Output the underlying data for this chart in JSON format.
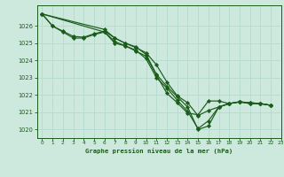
{
  "background_color": "#cde8dc",
  "grid_color": "#b8ddd0",
  "line_color": "#1a5c1a",
  "marker_color": "#1a5c1a",
  "title": "Graphe pression niveau de la mer (hPa)",
  "ylim": [
    1019.5,
    1027.2
  ],
  "xlim": [
    -0.5,
    23.0
  ],
  "yticks": [
    1020,
    1021,
    1022,
    1023,
    1024,
    1025,
    1026
  ],
  "xticks": [
    0,
    1,
    2,
    3,
    4,
    5,
    6,
    7,
    8,
    9,
    10,
    11,
    12,
    13,
    14,
    15,
    16,
    17,
    18,
    19,
    20,
    21,
    22,
    23
  ],
  "series": [
    {
      "x": [
        0,
        1,
        2,
        3,
        4,
        5,
        6,
        7,
        8,
        9,
        10,
        11,
        12,
        13,
        14,
        15,
        16,
        17,
        18,
        19,
        20,
        21,
        22
      ],
      "y": [
        1026.7,
        1026.0,
        1025.7,
        1025.4,
        1025.35,
        1025.55,
        1025.7,
        1025.3,
        1025.0,
        1024.8,
        1024.35,
        1023.2,
        1022.5,
        1021.9,
        1021.3,
        1020.0,
        1020.2,
        1021.3,
        1021.5,
        1021.6,
        1021.5,
        1021.5,
        1021.4
      ]
    },
    {
      "x": [
        0,
        1,
        2,
        3,
        4,
        5,
        6,
        7,
        8,
        9,
        10,
        11,
        12,
        13,
        14,
        15,
        16,
        17,
        18,
        19,
        20,
        21,
        22
      ],
      "y": [
        1026.7,
        1026.0,
        1025.65,
        1025.3,
        1025.3,
        1025.5,
        1025.65,
        1025.1,
        1024.85,
        1024.6,
        1024.1,
        1023.0,
        1022.4,
        1021.7,
        1021.05,
        1020.05,
        1020.5,
        1021.3,
        1021.5,
        1021.6,
        1021.5,
        1021.5,
        1021.4
      ]
    },
    {
      "x": [
        0,
        6,
        7,
        8,
        9,
        10,
        11,
        12,
        13,
        14,
        15,
        16,
        17,
        18,
        19,
        20,
        21,
        22
      ],
      "y": [
        1026.7,
        1025.8,
        1025.3,
        1025.0,
        1024.75,
        1024.45,
        1023.75,
        1022.75,
        1021.95,
        1021.55,
        1020.8,
        1021.1,
        1021.3,
        1021.5,
        1021.6,
        1021.55,
        1021.5,
        1021.4
      ]
    },
    {
      "x": [
        0,
        6,
        7,
        8,
        9,
        10,
        11,
        12,
        13,
        14,
        15,
        16,
        17,
        18,
        19,
        20,
        21,
        22
      ],
      "y": [
        1026.7,
        1025.65,
        1025.0,
        1024.85,
        1024.55,
        1024.25,
        1023.15,
        1022.1,
        1021.55,
        1020.95,
        1020.85,
        1021.65,
        1021.65,
        1021.5,
        1021.6,
        1021.55,
        1021.5,
        1021.4
      ]
    }
  ]
}
